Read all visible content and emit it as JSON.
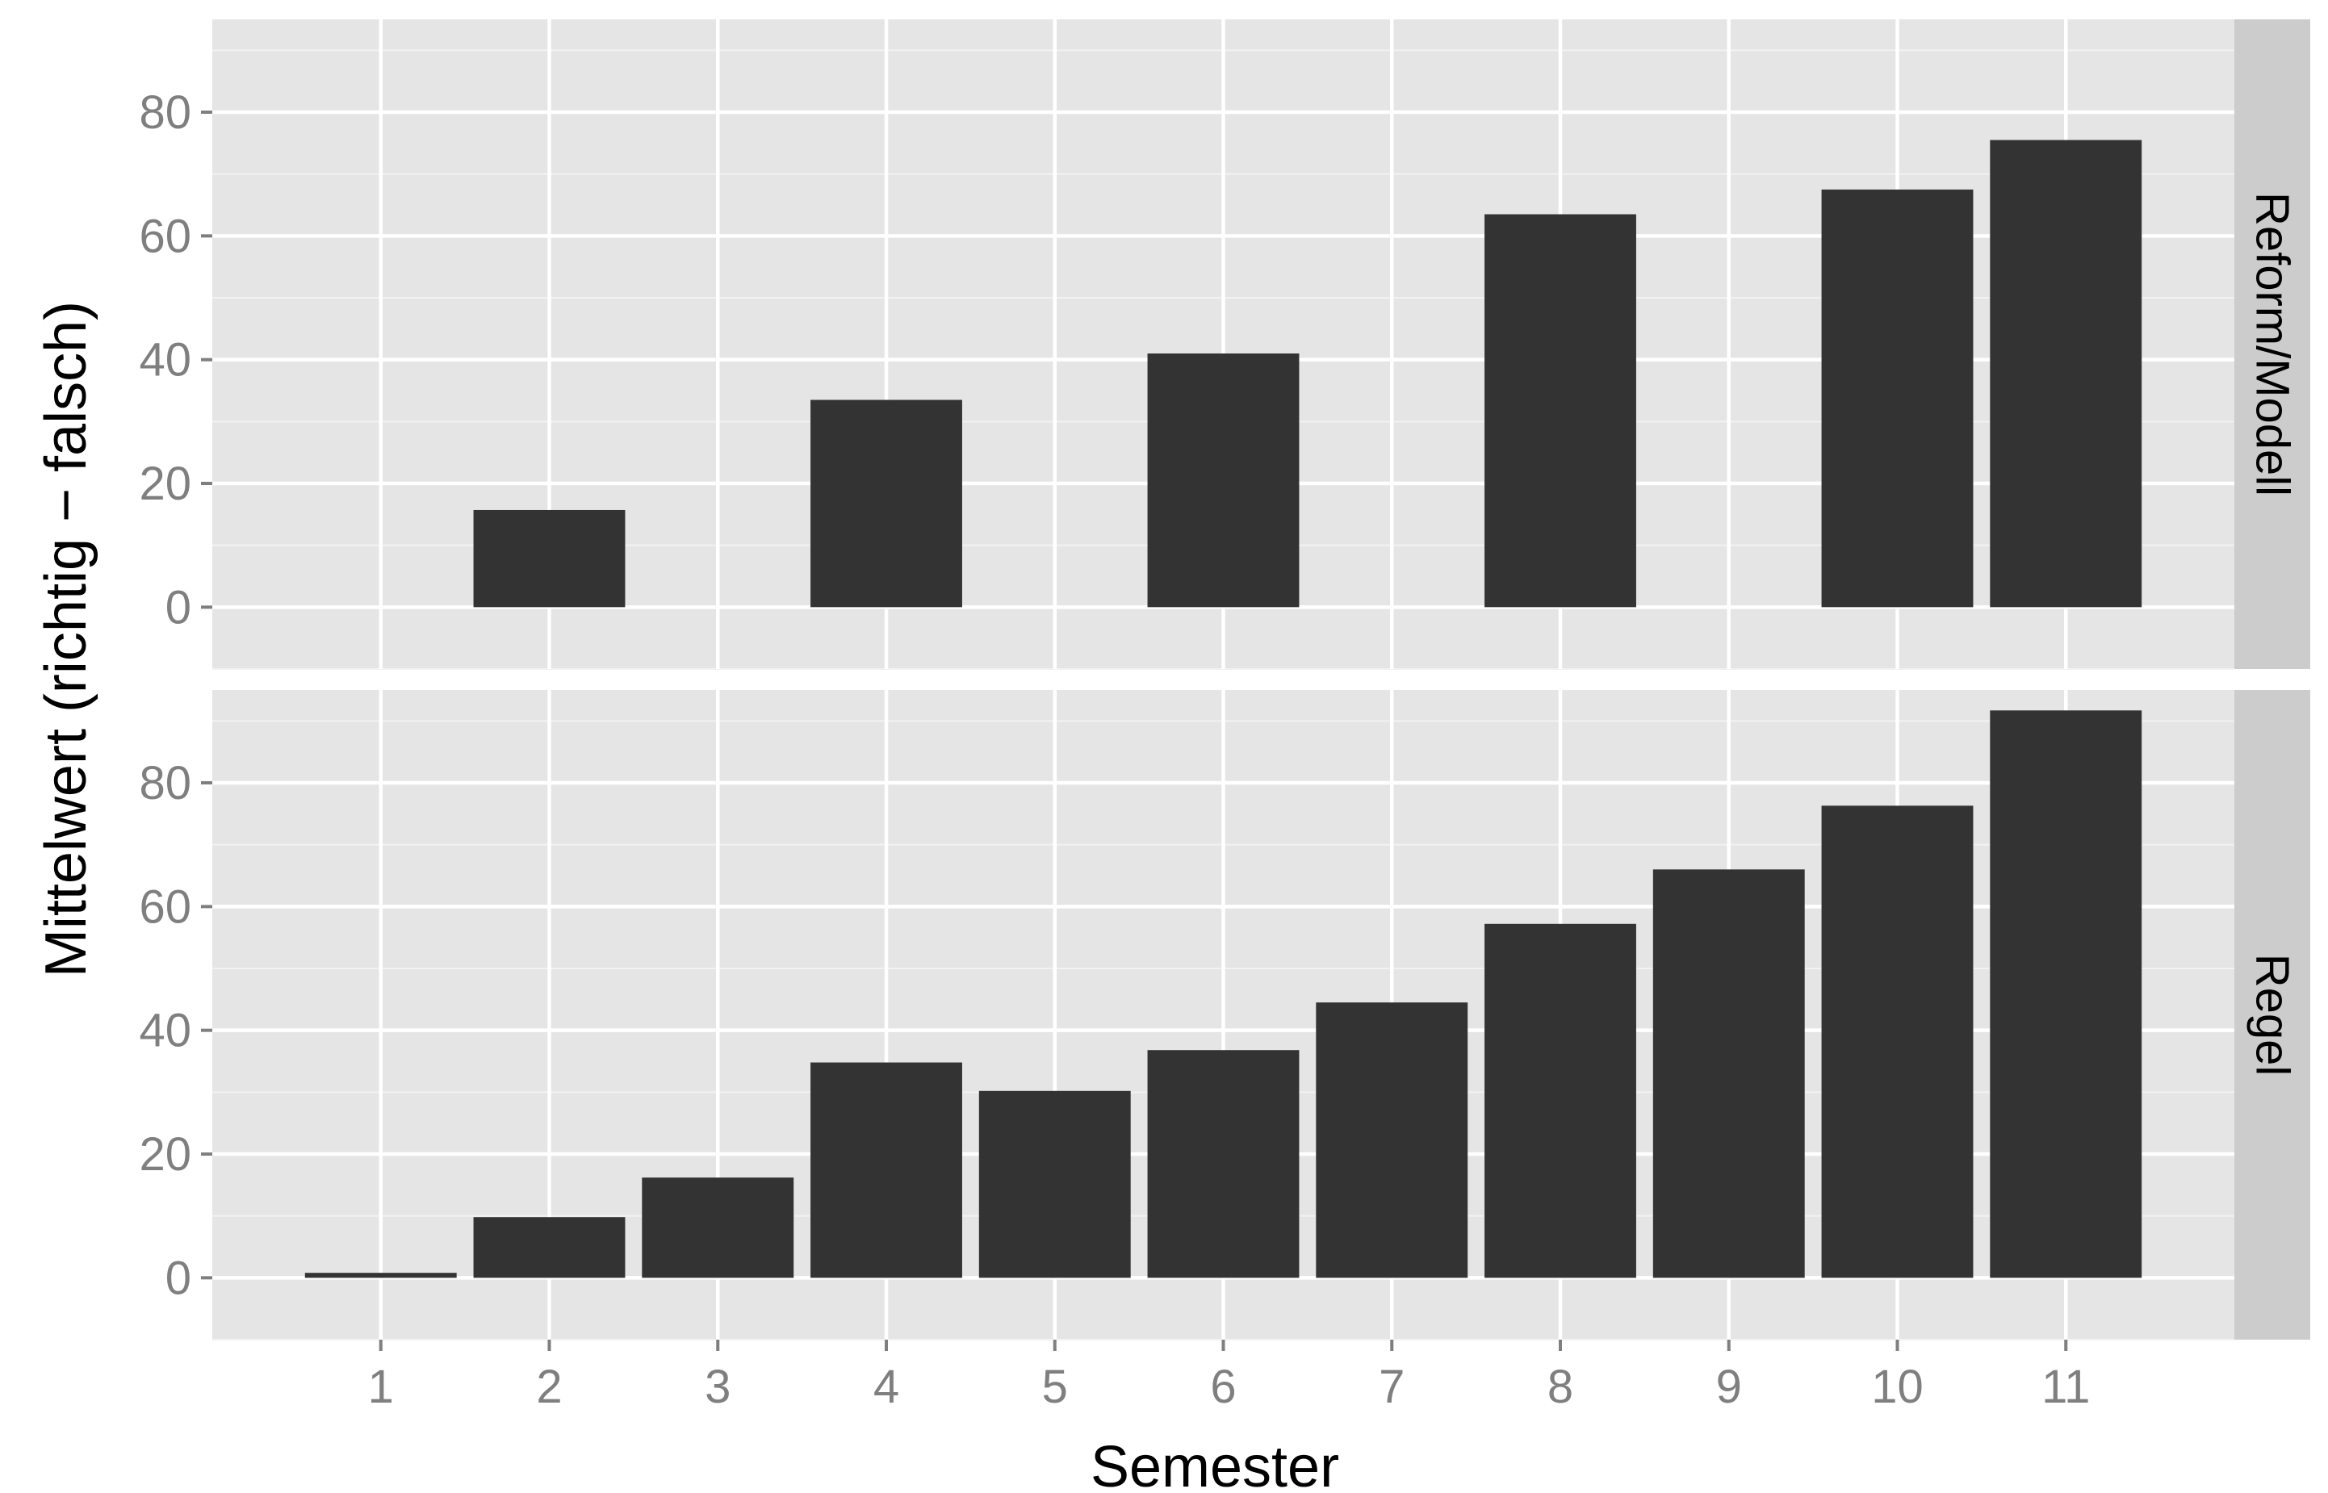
{
  "chart_data": {
    "type": "bar",
    "layout": "faceted vertically (two panels, shared x axis)",
    "xlabel": "Semester",
    "ylabel": "Mittelwert (richtig − falsch)",
    "categories": [
      "1",
      "2",
      "3",
      "4",
      "5",
      "6",
      "7",
      "8",
      "9",
      "10",
      "11"
    ],
    "ylim": [
      -10,
      95
    ],
    "y_ticks": [
      "0",
      "20",
      "40",
      "60",
      "80"
    ],
    "grid": true,
    "legend": "none",
    "bar_color": "#333333",
    "panel_background": "#E5E5E5",
    "strip_background": "#CCCCCC",
    "facets": [
      {
        "strip_label": "Reform/Modell",
        "values": [
          null,
          15.7,
          null,
          33.5,
          null,
          41.0,
          null,
          63.5,
          null,
          67.5,
          75.5
        ]
      },
      {
        "strip_label": "Regel",
        "values": [
          0.8,
          9.8,
          16.2,
          34.8,
          30.2,
          36.8,
          44.5,
          57.2,
          66.0,
          76.3,
          91.7
        ]
      }
    ]
  }
}
